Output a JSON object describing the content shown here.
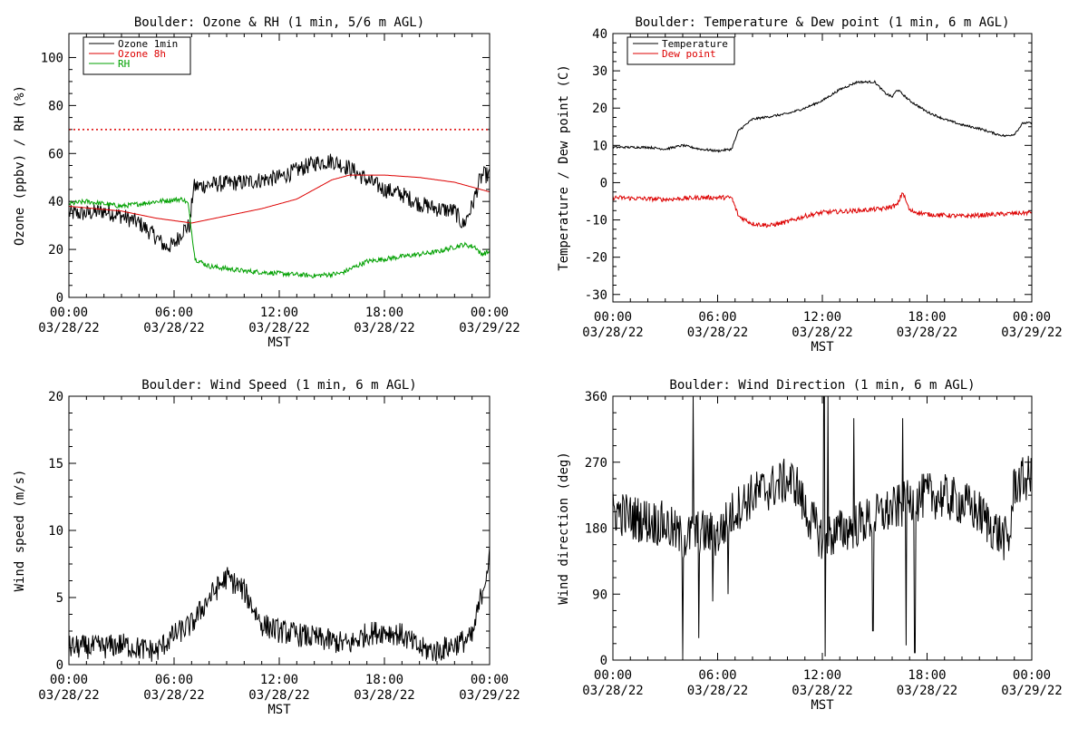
{
  "chart_data": [
    {
      "type": "line",
      "title": "Boulder: Ozone & RH (1 min, 5/6 m AGL)",
      "xlabel": "MST",
      "ylabel": "Ozone (ppbv) / RH (%)",
      "ylim": [
        0,
        110
      ],
      "yticks": [
        0,
        20,
        40,
        60,
        80,
        100
      ],
      "xlim": [
        "03/28/22 00:00",
        "03/29/22 00:00"
      ],
      "xticks": [
        {
          "time": "00:00",
          "date": "03/28/22"
        },
        {
          "time": "06:00",
          "date": "03/28/22"
        },
        {
          "time": "12:00",
          "date": "03/28/22"
        },
        {
          "time": "18:00",
          "date": "03/28/22"
        },
        {
          "time": "00:00",
          "date": "03/29/22"
        }
      ],
      "legend_position": "top-left",
      "reference_line": {
        "y": 70,
        "color": "#dd0000",
        "style": "dotted"
      },
      "series": [
        {
          "name": "Ozone 1min",
          "color": "#000000",
          "noise": 3.5,
          "points": [
            [
              0,
              35
            ],
            [
              1,
              35
            ],
            [
              2,
              36
            ],
            [
              3,
              34
            ],
            [
              4,
              31
            ],
            [
              5,
              25
            ],
            [
              5.5,
              21
            ],
            [
              6,
              22
            ],
            [
              6.5,
              28
            ],
            [
              6.9,
              30
            ],
            [
              7.1,
              46
            ],
            [
              8,
              47
            ],
            [
              10,
              48
            ],
            [
              12,
              50
            ],
            [
              13,
              53
            ],
            [
              14,
              56
            ],
            [
              15,
              57
            ],
            [
              16,
              54
            ],
            [
              17,
              49
            ],
            [
              18,
              45
            ],
            [
              19,
              43
            ],
            [
              20,
              39
            ],
            [
              21,
              37
            ],
            [
              22,
              36
            ],
            [
              22.5,
              30
            ],
            [
              23,
              38
            ],
            [
              23.4,
              48
            ],
            [
              23.6,
              51
            ],
            [
              24,
              51
            ]
          ]
        },
        {
          "name": "Ozone 8h",
          "color": "#dd0000",
          "noise": 0,
          "points": [
            [
              0,
              38
            ],
            [
              3,
              36
            ],
            [
              5,
              33
            ],
            [
              7,
              31
            ],
            [
              9,
              34
            ],
            [
              11,
              37
            ],
            [
              13,
              41
            ],
            [
              14,
              45
            ],
            [
              15,
              49
            ],
            [
              16,
              51
            ],
            [
              18,
              51
            ],
            [
              20,
              50
            ],
            [
              22,
              48
            ],
            [
              24,
              44
            ]
          ]
        },
        {
          "name": "RH",
          "color": "#00a000",
          "noise": 1,
          "points": [
            [
              0,
              39
            ],
            [
              1,
              40
            ],
            [
              3,
              38
            ],
            [
              5,
              40
            ],
            [
              6.5,
              41
            ],
            [
              6.8,
              39
            ],
            [
              7.2,
              16
            ],
            [
              8,
              13
            ],
            [
              10,
              11
            ],
            [
              12,
              10
            ],
            [
              14,
              9
            ],
            [
              15.5,
              10
            ],
            [
              17,
              15
            ],
            [
              19,
              17
            ],
            [
              21,
              19
            ],
            [
              22.5,
              22
            ],
            [
              23.2,
              21
            ],
            [
              23.5,
              18
            ],
            [
              24,
              19
            ]
          ]
        }
      ]
    },
    {
      "type": "line",
      "title": "Boulder: Temperature & Dew point (1 min, 6 m AGL)",
      "xlabel": "MST",
      "ylabel": "Temperature / Dew point (C)",
      "ylim": [
        -32,
        40
      ],
      "yticks": [
        -30,
        -20,
        -10,
        0,
        10,
        20,
        30,
        40
      ],
      "xlim": [
        "03/28/22 00:00",
        "03/29/22 00:00"
      ],
      "xticks": [
        {
          "time": "00:00",
          "date": "03/28/22"
        },
        {
          "time": "06:00",
          "date": "03/28/22"
        },
        {
          "time": "12:00",
          "date": "03/28/22"
        },
        {
          "time": "18:00",
          "date": "03/28/22"
        },
        {
          "time": "00:00",
          "date": "03/29/22"
        }
      ],
      "legend_position": "top-left",
      "series": [
        {
          "name": "Temperature",
          "color": "#000000",
          "noise": 0.3,
          "points": [
            [
              0,
              9.5
            ],
            [
              2,
              9.5
            ],
            [
              3,
              9
            ],
            [
              4,
              10
            ],
            [
              5,
              9
            ],
            [
              6,
              8.5
            ],
            [
              6.8,
              9
            ],
            [
              7.2,
              14
            ],
            [
              8,
              17
            ],
            [
              10,
              18.5
            ],
            [
              11,
              20
            ],
            [
              12,
              22
            ],
            [
              13,
              25
            ],
            [
              14,
              27
            ],
            [
              15,
              27
            ],
            [
              15.6,
              24
            ],
            [
              16,
              23
            ],
            [
              16.3,
              25
            ],
            [
              17,
              22
            ],
            [
              18,
              19
            ],
            [
              19,
              17
            ],
            [
              20,
              15.5
            ],
            [
              21,
              14.5
            ],
            [
              22,
              13
            ],
            [
              22.5,
              12.5
            ],
            [
              23,
              13
            ],
            [
              23.5,
              16
            ],
            [
              24,
              16
            ]
          ]
        },
        {
          "name": "Dew point",
          "color": "#dd0000",
          "noise": 0.6,
          "points": [
            [
              0,
              -4
            ],
            [
              3,
              -4.5
            ],
            [
              5,
              -4
            ],
            [
              6.8,
              -4
            ],
            [
              7.2,
              -9
            ],
            [
              8,
              -11
            ],
            [
              9,
              -11.5
            ],
            [
              10,
              -10.5
            ],
            [
              11,
              -9
            ],
            [
              12,
              -8
            ],
            [
              14,
              -7.5
            ],
            [
              15.5,
              -7
            ],
            [
              16.3,
              -6
            ],
            [
              16.6,
              -2.5
            ],
            [
              17,
              -7.5
            ],
            [
              18,
              -8.5
            ],
            [
              20,
              -9
            ],
            [
              22,
              -8.5
            ],
            [
              24,
              -8
            ]
          ]
        }
      ]
    },
    {
      "type": "line",
      "title": "Boulder: Wind Speed (1 min, 6 m AGL)",
      "xlabel": "MST",
      "ylabel": "Wind speed (m/s)",
      "ylim": [
        0,
        20
      ],
      "yticks": [
        0,
        5,
        10,
        15,
        20
      ],
      "xlim": [
        "03/28/22 00:00",
        "03/29/22 00:00"
      ],
      "xticks": [
        {
          "time": "00:00",
          "date": "03/28/22"
        },
        {
          "time": "06:00",
          "date": "03/28/22"
        },
        {
          "time": "12:00",
          "date": "03/28/22"
        },
        {
          "time": "18:00",
          "date": "03/28/22"
        },
        {
          "time": "00:00",
          "date": "03/29/22"
        }
      ],
      "series": [
        {
          "name": "",
          "color": "#000000",
          "noise": 0.9,
          "floor": 0,
          "points": [
            [
              0,
              1.3
            ],
            [
              2,
              1.3
            ],
            [
              3,
              1.5
            ],
            [
              4,
              1.2
            ],
            [
              5,
              1
            ],
            [
              6,
              2.2
            ],
            [
              7,
              3
            ],
            [
              8,
              5
            ],
            [
              9,
              6.5
            ],
            [
              10,
              5.5
            ],
            [
              11,
              3
            ],
            [
              12,
              2.5
            ],
            [
              14,
              2
            ],
            [
              16,
              1.5
            ],
            [
              17,
              2.3
            ],
            [
              18,
              2.5
            ],
            [
              19,
              2.2
            ],
            [
              20,
              1.2
            ],
            [
              21,
              1
            ],
            [
              22,
              1.5
            ],
            [
              23,
              2
            ],
            [
              23.5,
              5
            ],
            [
              24,
              8
            ]
          ]
        }
      ]
    },
    {
      "type": "line",
      "title": "Boulder: Wind Direction (1 min, 6 m AGL)",
      "xlabel": "MST",
      "ylabel": "Wind direction (deg)",
      "ylim": [
        0,
        360
      ],
      "yticks": [
        0,
        90,
        180,
        270,
        360
      ],
      "xlim": [
        "03/28/22 00:00",
        "03/29/22 00:00"
      ],
      "xticks": [
        {
          "time": "00:00",
          "date": "03/28/22"
        },
        {
          "time": "06:00",
          "date": "03/28/22"
        },
        {
          "time": "12:00",
          "date": "03/28/22"
        },
        {
          "time": "18:00",
          "date": "03/28/22"
        },
        {
          "time": "00:00",
          "date": "03/29/22"
        }
      ],
      "series": [
        {
          "name": "",
          "color": "#000000",
          "noise": 32,
          "floor": 0,
          "ceil": 360,
          "spikes": [
            [
              3.9,
              350
            ],
            [
              4.0,
              5
            ],
            [
              4.6,
              360
            ],
            [
              4.9,
              30
            ],
            [
              5.7,
              80
            ],
            [
              6.6,
              90
            ],
            [
              12.1,
              360
            ],
            [
              12.15,
              5
            ],
            [
              12.3,
              365
            ],
            [
              13.8,
              330
            ],
            [
              14.9,
              40
            ],
            [
              16.6,
              330
            ],
            [
              16.8,
              20
            ],
            [
              17.3,
              10
            ]
          ],
          "points": [
            [
              0,
              205
            ],
            [
              1,
              195
            ],
            [
              2,
              190
            ],
            [
              3,
              185
            ],
            [
              4,
              165
            ],
            [
              5,
              175
            ],
            [
              6,
              170
            ],
            [
              7,
              205
            ],
            [
              8,
              225
            ],
            [
              9,
              235
            ],
            [
              10,
              245
            ],
            [
              10.5,
              240
            ],
            [
              11,
              205
            ],
            [
              12,
              165
            ],
            [
              13,
              175
            ],
            [
              14,
              185
            ],
            [
              15,
              195
            ],
            [
              16,
              205
            ],
            [
              17,
              215
            ],
            [
              18,
              225
            ],
            [
              19,
              222
            ],
            [
              20,
              215
            ],
            [
              21,
              200
            ],
            [
              22,
              175
            ],
            [
              22.7,
              160
            ],
            [
              23,
              240
            ],
            [
              24,
              250
            ]
          ]
        }
      ]
    }
  ]
}
